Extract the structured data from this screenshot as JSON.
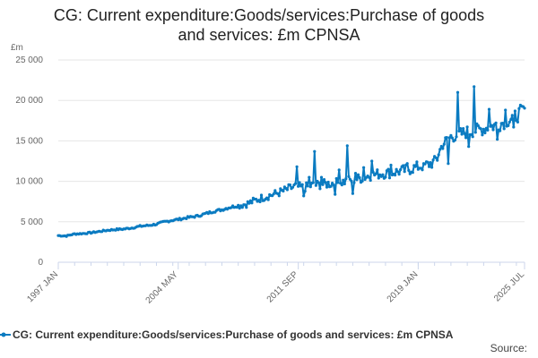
{
  "chart_data": {
    "type": "line",
    "title": "CG: Current expenditure:Goods/services:Purchase of goods and services: £m CPNSA",
    "title_lines": [
      "CG: Current expenditure:Goods/services:Purchase of goods",
      "and services: £m CPNSA"
    ],
    "ylabel": "£m",
    "xlabel": "",
    "ylim": [
      0,
      25000
    ],
    "y_ticks": [
      0,
      5000,
      10000,
      15000,
      20000,
      25000
    ],
    "y_tick_labels": [
      "0",
      "5 000",
      "10 000",
      "15 000",
      "20 000",
      "25 000"
    ],
    "x_tick_labels": [
      "1997 JAN",
      "2004 MAY",
      "2011 SEP",
      "2019 JAN",
      "2025 JUL"
    ],
    "x_tick_positions": [
      1997.0,
      2004.33,
      2011.67,
      2019.0,
      2025.5
    ],
    "x_range": [
      1997.0,
      2025.5
    ],
    "grid": true,
    "legend_position": "bottom",
    "series": [
      {
        "name": "CG: Current expenditure:Goods/services:Purchase of goods and services: £m CPNSA",
        "color": "#0a7bc1",
        "points": [
          [
            1997.0,
            3300
          ],
          [
            1997.5,
            3250
          ],
          [
            1998.0,
            3500
          ],
          [
            1998.5,
            3550
          ],
          [
            1999.0,
            3650
          ],
          [
            1999.5,
            3800
          ],
          [
            2000.0,
            3950
          ],
          [
            2000.5,
            4050
          ],
          [
            2001.0,
            4100
          ],
          [
            2001.5,
            4250
          ],
          [
            2002.0,
            4450
          ],
          [
            2002.5,
            4550
          ],
          [
            2003.0,
            4700
          ],
          [
            2003.5,
            5000
          ],
          [
            2004.0,
            5200
          ],
          [
            2004.5,
            5350
          ],
          [
            2005.0,
            5550
          ],
          [
            2005.5,
            5700
          ],
          [
            2006.0,
            6000
          ],
          [
            2006.5,
            6300
          ],
          [
            2007.0,
            6500
          ],
          [
            2007.5,
            6800
          ],
          [
            2008.0,
            7000
          ],
          [
            2008.5,
            7200
          ],
          [
            2009.0,
            7600
          ],
          [
            2009.5,
            8000
          ],
          [
            2010.0,
            8300
          ],
          [
            2010.5,
            8600
          ],
          [
            2011.0,
            9000
          ],
          [
            2011.5,
            9400
          ],
          [
            2012.0,
            9200
          ],
          [
            2012.5,
            9500
          ],
          [
            2013.0,
            9600
          ],
          [
            2013.5,
            9700
          ],
          [
            2014.0,
            9800
          ],
          [
            2014.5,
            10000
          ],
          [
            2015.0,
            10200
          ],
          [
            2015.5,
            10400
          ],
          [
            2016.0,
            10700
          ],
          [
            2016.5,
            10900
          ],
          [
            2017.0,
            11000
          ],
          [
            2017.5,
            11100
          ],
          [
            2018.0,
            11300
          ],
          [
            2018.5,
            11500
          ],
          [
            2019.0,
            11800
          ],
          [
            2019.5,
            12000
          ],
          [
            2020.0,
            12400
          ],
          [
            2020.5,
            14600
          ],
          [
            2021.0,
            15500
          ],
          [
            2021.5,
            15800
          ],
          [
            2022.0,
            16100
          ],
          [
            2022.5,
            16300
          ],
          [
            2023.0,
            16500
          ],
          [
            2023.5,
            16800
          ],
          [
            2024.0,
            17100
          ],
          [
            2024.5,
            17600
          ],
          [
            2025.0,
            18100
          ],
          [
            2025.5,
            18900
          ]
        ],
        "spikes": [
          [
            2011.6,
            11800
          ],
          [
            2012.3,
            10500
          ],
          [
            2012.7,
            13700
          ],
          [
            2013.1,
            10500
          ],
          [
            2014.2,
            11400
          ],
          [
            2014.7,
            14400
          ],
          [
            2015.2,
            11000
          ],
          [
            2015.7,
            11700
          ],
          [
            2016.2,
            12500
          ],
          [
            2017.3,
            12000
          ],
          [
            2018.3,
            12200
          ],
          [
            2019.3,
            12200
          ],
          [
            2020.2,
            12600
          ],
          [
            2021.4,
            21000
          ],
          [
            2022.4,
            21700
          ],
          [
            2023.3,
            18900
          ],
          [
            2024.3,
            18800
          ]
        ],
        "dips": [
          [
            2012.0,
            8200
          ],
          [
            2013.9,
            8400
          ],
          [
            2015.0,
            8500
          ],
          [
            2020.8,
            12200
          ],
          [
            2022.1,
            14300
          ],
          [
            2023.8,
            15200
          ],
          [
            2024.8,
            16700
          ]
        ]
      }
    ]
  },
  "legend": {
    "label": "CG: Current expenditure:Goods/services:Purchase of goods and services: £m CPNSA"
  },
  "footer": {
    "source_label": "Source:"
  },
  "colors": {
    "series": "#0a7bc1",
    "grid": "#e6e6e6",
    "axis": "#ccd6eb"
  }
}
